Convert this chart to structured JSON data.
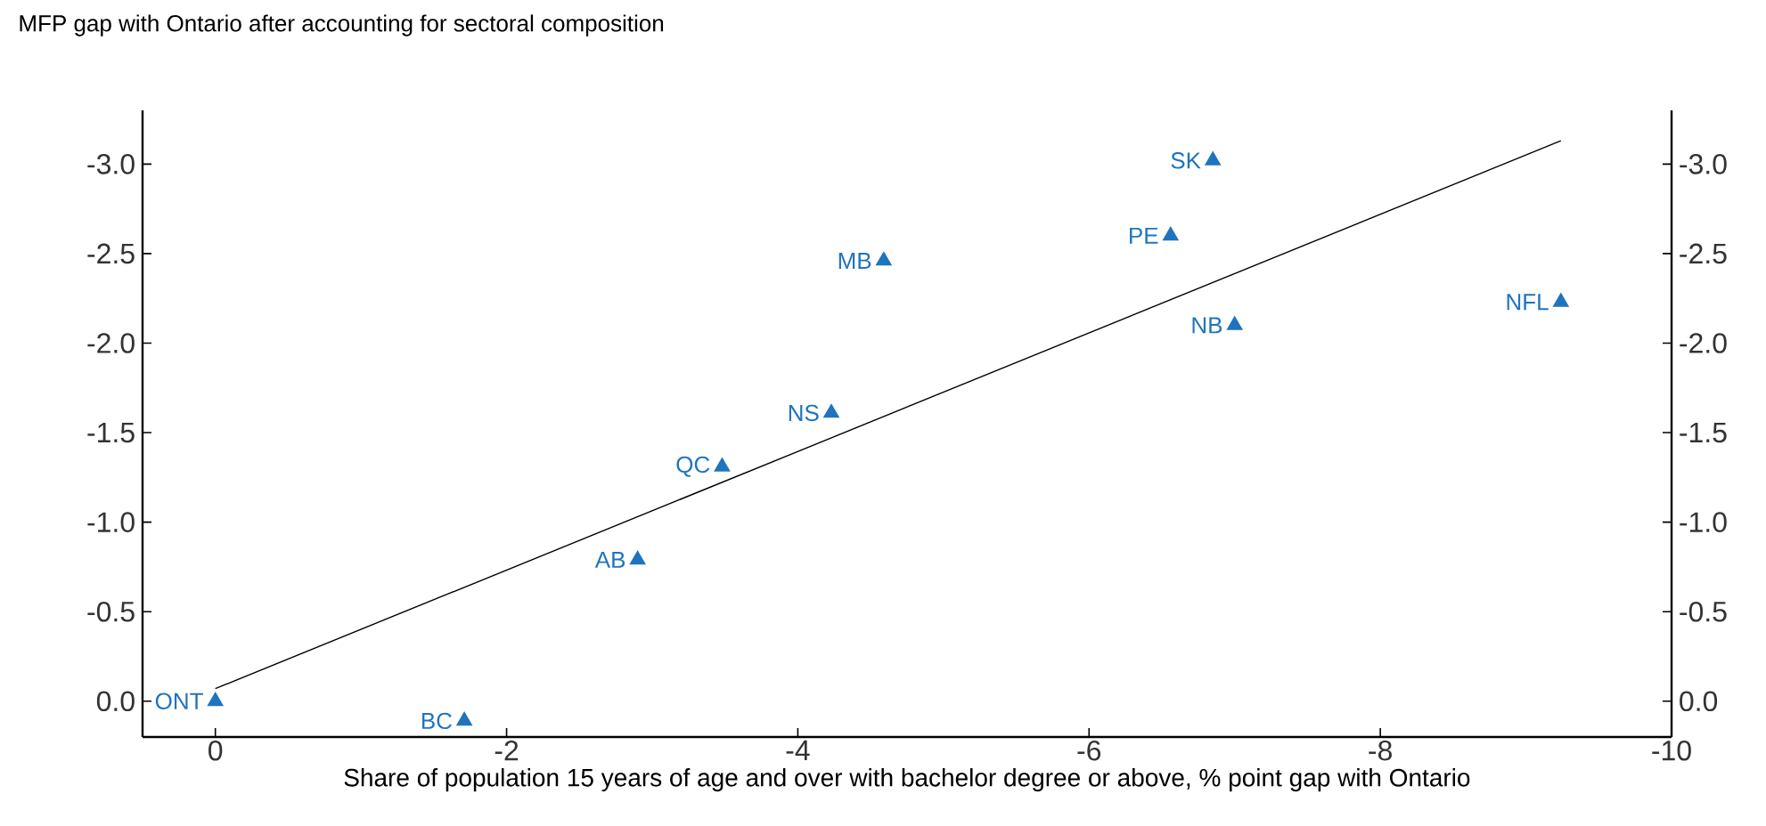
{
  "chart_data": {
    "type": "scatter",
    "title": "MFP gap with Ontario after accounting for sectoral composition",
    "xlabel": "Share of population 15 years of age and over with bachelor degree or above,  % point gap with Ontario",
    "series": [
      {
        "color": "#1f74bd",
        "marker": "triangle",
        "x": [
          0,
          -1.71,
          -2.9,
          -3.48,
          -4.23,
          -4.59,
          -6.56,
          -6.85,
          -7.0,
          -9.24
        ],
        "values": [
          0,
          0.11,
          -0.79,
          -1.31,
          -1.61,
          -2.46,
          -2.6,
          -3.02,
          -2.1,
          -2.23
        ]
      },
      {
        "type": "line",
        "color": "#000000",
        "marker": "none",
        "x": [
          0,
          -9.24
        ],
        "values": [
          -0.07,
          -3.13
        ]
      }
    ],
    "annotations": [
      {
        "text": "ONT",
        "x": 0,
        "y": 0
      },
      {
        "text": "BC",
        "x": -1.71,
        "y": 0.11
      },
      {
        "text": "AB",
        "x": -2.9,
        "y": -0.79
      },
      {
        "text": "QC",
        "x": -3.48,
        "y": -1.31
      },
      {
        "text": "NS",
        "x": -4.23,
        "y": -1.61
      },
      {
        "text": "MB",
        "x": -4.59,
        "y": -2.46
      },
      {
        "text": "PE",
        "x": -6.56,
        "y": -2.6
      },
      {
        "text": "SK",
        "x": -6.85,
        "y": -3.02
      },
      {
        "text": "NB",
        "x": -7.0,
        "y": -2.1
      },
      {
        "text": "NFL",
        "x": -9.24,
        "y": -2.23
      }
    ],
    "xlim": [
      0.5,
      -10
    ],
    "xticks": [
      0,
      -2,
      -4,
      -6,
      -8,
      -10
    ],
    "ylim": [
      0.2,
      -3.3
    ],
    "yticks": [
      {
        "value": 0,
        "label": "0.0"
      },
      {
        "value": -0.5,
        "label": "-0.5"
      },
      {
        "value": -1,
        "label": "-1.0"
      },
      {
        "value": -1.5,
        "label": "-1.5"
      },
      {
        "value": -2,
        "label": "-2.0"
      },
      {
        "value": -2.5,
        "label": "-2.5"
      },
      {
        "value": -3,
        "label": "-3.0"
      }
    ],
    "y2lim": [
      0.2,
      -3.3
    ],
    "y2ticks": [
      {
        "value": 0,
        "label": "0.0"
      },
      {
        "value": -0.5,
        "label": "-0.5"
      },
      {
        "value": -1,
        "label": "-1.0"
      },
      {
        "value": -1.5,
        "label": "-1.5"
      },
      {
        "value": -2,
        "label": "-2.0"
      },
      {
        "value": -2.5,
        "label": "-2.5"
      },
      {
        "value": -3,
        "label": "-3.0"
      }
    ]
  }
}
